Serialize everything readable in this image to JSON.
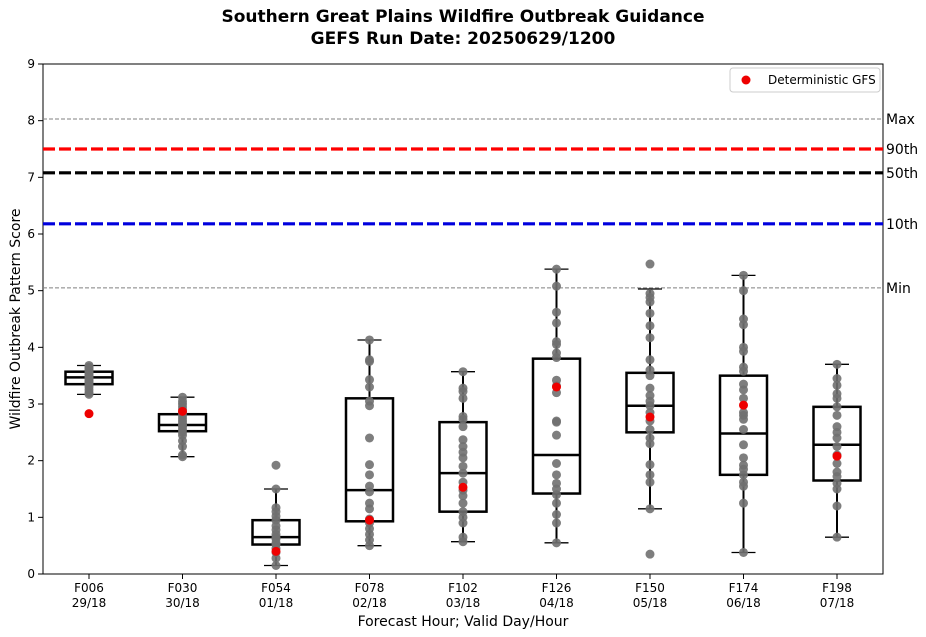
{
  "chart_data": {
    "type": "box",
    "title": "Southern Great Plains Wildfire Outbreak Guidance",
    "subtitle": "GEFS Run Date: 20250629/1200",
    "xlabel": "Forecast Hour; Valid Day/Hour",
    "ylabel": "Wildfire Outbreak Pattern Score",
    "ylim": [
      0,
      9
    ],
    "yticks": [
      "0",
      "1",
      "2",
      "3",
      "4",
      "5",
      "6",
      "7",
      "8",
      "9"
    ],
    "grid": false,
    "legend": {
      "position": "top-right",
      "entries": [
        {
          "label": "Deterministic GFS",
          "color": "#ee0000",
          "marker": "dot"
        }
      ]
    },
    "reference_lines": [
      {
        "label": "Max",
        "value": 8.03,
        "color": "#808080",
        "style": "thin-dashed"
      },
      {
        "label": "90th",
        "value": 7.5,
        "color": "#ff0000",
        "style": "thick-dashed"
      },
      {
        "label": "50th",
        "value": 7.08,
        "color": "#000000",
        "style": "thick-dashed"
      },
      {
        "label": "10th",
        "value": 6.18,
        "color": "#0000dd",
        "style": "thick-dashed"
      },
      {
        "label": "Min",
        "value": 5.05,
        "color": "#808080",
        "style": "thin-dashed"
      }
    ],
    "categories": [
      {
        "hour": "F006",
        "valid": "29/18"
      },
      {
        "hour": "F030",
        "valid": "30/18"
      },
      {
        "hour": "F054",
        "valid": "01/18"
      },
      {
        "hour": "F078",
        "valid": "02/18"
      },
      {
        "hour": "F102",
        "valid": "03/18"
      },
      {
        "hour": "F126",
        "valid": "04/18"
      },
      {
        "hour": "F150",
        "valid": "05/18"
      },
      {
        "hour": "F174",
        "valid": "06/18"
      },
      {
        "hour": "F198",
        "valid": "07/18"
      }
    ],
    "boxes": [
      {
        "whisker_low": 3.17,
        "q1": 3.35,
        "median": 3.47,
        "q3": 3.57,
        "whisker_high": 3.68
      },
      {
        "whisker_low": 2.07,
        "q1": 2.52,
        "median": 2.63,
        "q3": 2.82,
        "whisker_high": 3.12
      },
      {
        "whisker_low": 0.15,
        "q1": 0.52,
        "median": 0.65,
        "q3": 0.95,
        "whisker_high": 1.5
      },
      {
        "whisker_low": 0.5,
        "q1": 0.93,
        "median": 1.48,
        "q3": 3.1,
        "whisker_high": 4.13
      },
      {
        "whisker_low": 0.57,
        "q1": 1.1,
        "median": 1.78,
        "q3": 2.68,
        "whisker_high": 3.57
      },
      {
        "whisker_low": 0.55,
        "q1": 1.42,
        "median": 2.1,
        "q3": 3.8,
        "whisker_high": 5.38
      },
      {
        "whisker_low": 1.15,
        "q1": 2.5,
        "median": 2.97,
        "q3": 3.55,
        "whisker_high": 5.03
      },
      {
        "whisker_low": 0.38,
        "q1": 1.75,
        "median": 2.48,
        "q3": 3.5,
        "whisker_high": 5.27
      },
      {
        "whisker_low": 0.65,
        "q1": 1.65,
        "median": 2.28,
        "q3": 2.95,
        "whisker_high": 3.7
      }
    ],
    "members": [
      [
        3.17,
        3.2,
        3.25,
        3.3,
        3.35,
        3.38,
        3.4,
        3.42,
        3.45,
        3.47,
        3.5,
        3.52,
        3.55,
        3.57,
        3.6,
        3.63,
        3.65,
        3.68
      ],
      [
        2.07,
        2.1,
        2.25,
        2.35,
        2.45,
        2.5,
        2.55,
        2.6,
        2.63,
        2.66,
        2.7,
        2.75,
        2.8,
        2.85,
        2.9,
        2.95,
        3.0,
        3.05,
        3.12
      ],
      [
        0.15,
        0.28,
        0.38,
        0.45,
        0.52,
        0.55,
        0.62,
        0.65,
        0.7,
        0.78,
        0.85,
        0.95,
        1.02,
        1.1,
        1.17,
        1.5,
        1.92
      ],
      [
        0.5,
        0.6,
        0.7,
        0.8,
        0.9,
        0.97,
        1.15,
        1.25,
        1.45,
        1.55,
        1.75,
        1.93,
        2.4,
        2.97,
        3.05,
        3.3,
        3.43,
        3.75,
        3.78,
        4.13
      ],
      [
        0.57,
        0.65,
        0.9,
        1.0,
        1.1,
        1.25,
        1.38,
        1.48,
        1.62,
        1.78,
        1.9,
        2.05,
        2.15,
        2.25,
        2.37,
        2.6,
        2.73,
        2.78,
        3.1,
        3.22,
        3.28,
        3.57
      ],
      [
        0.55,
        0.9,
        1.05,
        1.25,
        1.4,
        1.5,
        1.6,
        1.75,
        1.95,
        2.45,
        2.68,
        2.7,
        3.2,
        3.32,
        3.42,
        3.82,
        3.9,
        4.05,
        4.1,
        4.43,
        4.62,
        5.08,
        5.38
      ],
      [
        0.35,
        1.15,
        1.62,
        1.75,
        1.93,
        2.3,
        2.4,
        2.55,
        2.7,
        2.85,
        2.97,
        3.05,
        3.15,
        3.28,
        3.5,
        3.6,
        3.78,
        4.17,
        4.38,
        4.6,
        4.8,
        4.88,
        4.95,
        5.47
      ],
      [
        0.38,
        1.25,
        1.55,
        1.62,
        1.75,
        1.85,
        1.92,
        2.05,
        2.28,
        2.55,
        2.73,
        2.8,
        2.85,
        3.1,
        3.25,
        3.35,
        3.58,
        3.65,
        3.93,
        4.0,
        4.4,
        4.5,
        5.0,
        5.27
      ],
      [
        0.65,
        1.2,
        1.5,
        1.6,
        1.72,
        1.8,
        1.95,
        2.1,
        2.25,
        2.4,
        2.5,
        2.6,
        2.8,
        2.95,
        3.1,
        3.18,
        3.33,
        3.45,
        3.7
      ]
    ],
    "deterministic_gfs": [
      2.83,
      2.87,
      0.4,
      0.95,
      1.53,
      3.3,
      2.77,
      2.98,
      2.08
    ]
  }
}
